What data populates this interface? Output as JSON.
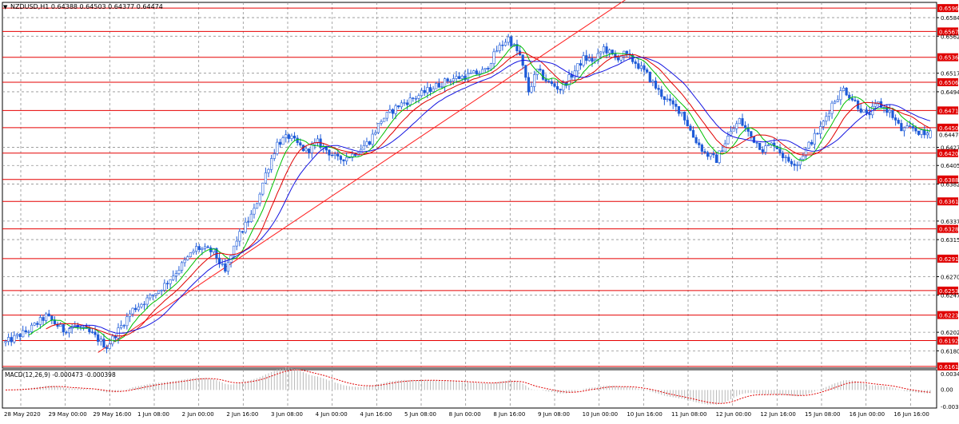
{
  "window": {
    "symbol_header": "NZDUSD,H1  0.64388 0.64503 0.64377 0.64474",
    "dropdown_glyph": "▼"
  },
  "colors": {
    "background": "#ffffff",
    "frame": "#000000",
    "grid": "#c0c0c0",
    "candle": "#1e5bd8",
    "level_line": "#e60000",
    "trendline": "#ff2020",
    "ma_green": "#00c000",
    "ma_red": "#e00000",
    "ma_blue": "#1414e0",
    "macd_hist": "#b8b8b8",
    "macd_signal": "#e00000",
    "label_bg": "#e00000",
    "label_text": "#ffffff"
  },
  "chart_data": {
    "type": "candlestick",
    "instrument": "NZDUSD",
    "timeframe": "H1",
    "ohlc_last": {
      "open": 0.64388,
      "high": 0.64503,
      "low": 0.64377,
      "close": 0.64474
    },
    "price_range": [
      0.6159,
      0.6603
    ],
    "grid": true,
    "price_axis_ticks": [
      "0.65845",
      "0.65620",
      "0.65170",
      "0.64945",
      "0.64270",
      "0.64050",
      "0.63825",
      "0.63375",
      "0.63150",
      "0.62700",
      "0.62475",
      "0.62025",
      "0.61800"
    ],
    "current_price_label": "0.64474",
    "time_axis_labels": [
      "28 May 2020",
      "29 May 00:00",
      "29 May 16:00",
      "1 Jun 08:00",
      "2 Jun 00:00",
      "2 Jun 16:00",
      "3 Jun 08:00",
      "4 Jun 00:00",
      "4 Jun 16:00",
      "5 Jun 08:00",
      "8 Jun 00:00",
      "8 Jun 16:00",
      "9 Jun 08:00",
      "10 Jun 00:00",
      "10 Jun 16:00",
      "11 Jun 08:00",
      "12 Jun 00:00",
      "12 Jun 16:00",
      "15 Jun 08:00",
      "16 Jun 00:00",
      "16 Jun 16:00"
    ],
    "horizontal_levels": [
      {
        "label": "0.65961",
        "value": 0.65961
      },
      {
        "label": "0.65677",
        "value": 0.65677
      },
      {
        "label": "0.65364",
        "value": 0.65364
      },
      {
        "label": "0.65061",
        "value": 0.65061
      },
      {
        "label": "0.64718",
        "value": 0.64718
      },
      {
        "label": "0.64509",
        "value": 0.64509
      },
      {
        "label": "0.64200",
        "value": 0.642
      },
      {
        "label": "0.63880",
        "value": 0.6388
      },
      {
        "label": "0.63614",
        "value": 0.63614
      },
      {
        "label": "0.63280",
        "value": 0.6328
      },
      {
        "label": "0.62919",
        "value": 0.62919
      },
      {
        "label": "0.62531",
        "value": 0.62531
      },
      {
        "label": "0.62234",
        "value": 0.62234
      },
      {
        "label": "0.61924",
        "value": 0.61924
      },
      {
        "label": "0.61610",
        "value": 0.6161
      }
    ],
    "price_path": [
      [
        0,
        0.619
      ],
      [
        8,
        0.6205
      ],
      [
        14,
        0.6222
      ],
      [
        20,
        0.6205
      ],
      [
        24,
        0.621
      ],
      [
        30,
        0.62
      ],
      [
        35,
        0.6185
      ],
      [
        38,
        0.62
      ],
      [
        44,
        0.623
      ],
      [
        50,
        0.6245
      ],
      [
        55,
        0.626
      ],
      [
        60,
        0.628
      ],
      [
        66,
        0.6305
      ],
      [
        72,
        0.63
      ],
      [
        76,
        0.6275
      ],
      [
        80,
        0.6315
      ],
      [
        86,
        0.635
      ],
      [
        90,
        0.6395
      ],
      [
        94,
        0.6432
      ],
      [
        98,
        0.644
      ],
      [
        104,
        0.6422
      ],
      [
        108,
        0.6433
      ],
      [
        115,
        0.6412
      ],
      [
        120,
        0.6418
      ],
      [
        126,
        0.6435
      ],
      [
        130,
        0.646
      ],
      [
        136,
        0.6478
      ],
      [
        142,
        0.6488
      ],
      [
        148,
        0.65
      ],
      [
        154,
        0.651
      ],
      [
        160,
        0.6514
      ],
      [
        166,
        0.652
      ],
      [
        170,
        0.6545
      ],
      [
        174,
        0.656
      ],
      [
        178,
        0.6538
      ],
      [
        181,
        0.6495
      ],
      [
        184,
        0.652
      ],
      [
        188,
        0.6505
      ],
      [
        192,
        0.6498
      ],
      [
        196,
        0.6515
      ],
      [
        200,
        0.6535
      ],
      [
        204,
        0.6532
      ],
      [
        207,
        0.6548
      ],
      [
        211,
        0.6535
      ],
      [
        214,
        0.654
      ],
      [
        218,
        0.653
      ],
      [
        222,
        0.6515
      ],
      [
        226,
        0.6495
      ],
      [
        230,
        0.648
      ],
      [
        234,
        0.647
      ],
      [
        238,
        0.644
      ],
      [
        242,
        0.642
      ],
      [
        246,
        0.6412
      ],
      [
        250,
        0.644
      ],
      [
        254,
        0.646
      ],
      [
        258,
        0.644
      ],
      [
        262,
        0.6425
      ],
      [
        266,
        0.6432
      ],
      [
        270,
        0.6412
      ],
      [
        274,
        0.6408
      ],
      [
        278,
        0.643
      ],
      [
        282,
        0.645
      ],
      [
        286,
        0.648
      ],
      [
        290,
        0.6498
      ],
      [
        294,
        0.6482
      ],
      [
        298,
        0.6465
      ],
      [
        302,
        0.648
      ],
      [
        306,
        0.647
      ],
      [
        310,
        0.6448
      ],
      [
        314,
        0.645
      ],
      [
        318,
        0.6442
      ],
      [
        320,
        0.6447
      ]
    ],
    "moving_averages": [
      {
        "color_key": "ma_green",
        "period_bars": 8
      },
      {
        "color_key": "ma_red",
        "period_bars": 14
      },
      {
        "color_key": "ma_blue",
        "period_bars": 22
      }
    ],
    "trendline": {
      "from": [
        32,
        0.6178
      ],
      "to": [
        217,
        0.6612
      ]
    },
    "macd": {
      "label": "MACD(12,26,9) -0.000473 -0.000398",
      "params": [
        12,
        26,
        9
      ],
      "main": -0.000473,
      "signal": -0.000398,
      "range": [
        -0.00309,
        0.00347
      ],
      "axis_ticks": [
        "0.00347",
        "0.00",
        "-0.00309"
      ]
    }
  }
}
